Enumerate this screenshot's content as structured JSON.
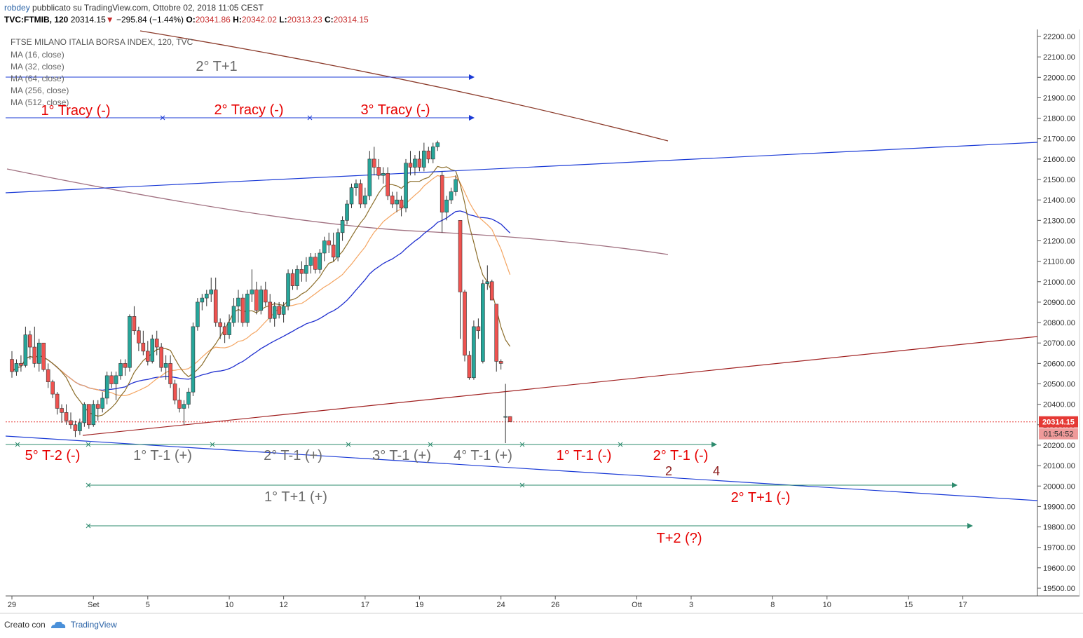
{
  "header": {
    "user": "robdey",
    "published": "pubblicato su TradingView.com, Ottobre 02, 2018 11:05 CEST",
    "symbol": "TVC:FTMIB, 120",
    "last": "20314.15",
    "arrow": "▼",
    "change": "−295.84 (−1.44%)",
    "o_label": "O:",
    "o_val": "20341.86",
    "h_label": "H:",
    "h_val": "20342.02",
    "l_label": "L:",
    "l_val": "20313.23",
    "c_label": "C:",
    "c_val": "20314.15"
  },
  "legend": {
    "title": "FTSE MILANO ITALIA BORSA INDEX, 120, TVC",
    "items": [
      "MA (16, close)",
      "MA (32, close)",
      "MA (64, close)",
      "MA (256, close)",
      "MA (512, close)"
    ]
  },
  "footer": {
    "created": "Creato con",
    "brand": "TradingView",
    "logo_icon": "tradingview-cloud-icon"
  },
  "colors": {
    "up": "#26a69a",
    "down": "#ef5350",
    "ma16": "#8b6d2a",
    "ma32": "#f4a460",
    "ma64": "#1f2fcf",
    "ma256": "#a07080",
    "ma512": "#8b3a2a",
    "annot_red": "#e60000",
    "annot_grey": "#6a6a6a",
    "hline_blue": "#1a3ad6",
    "teal": "#2e8b6e"
  },
  "chart_data": {
    "type": "candlestick",
    "ylim": [
      19450,
      22250
    ],
    "y_ticks": [
      "19500.00",
      "19600.00",
      "19700.00",
      "19800.00",
      "19900.00",
      "20000.00",
      "20100.00",
      "20200.00",
      "20300.00",
      "20400.00",
      "20500.00",
      "20600.00",
      "20700.00",
      "20800.00",
      "20900.00",
      "21000.00",
      "21100.00",
      "21200.00",
      "21300.00",
      "21400.00",
      "21500.00",
      "21600.00",
      "21700.00",
      "21800.00",
      "21900.00",
      "22000.00",
      "22100.00",
      "22200.00"
    ],
    "x_ticks": [
      {
        "label": "29",
        "bar": 0
      },
      {
        "label": "Set",
        "bar": 18
      },
      {
        "label": "5",
        "bar": 30
      },
      {
        "label": "10",
        "bar": 48
      },
      {
        "label": "12",
        "bar": 60
      },
      {
        "label": "17",
        "bar": 78
      },
      {
        "label": "19",
        "bar": 90
      },
      {
        "label": "24",
        "bar": 108
      },
      {
        "label": "26",
        "bar": 120
      },
      {
        "label": "Ott",
        "bar": 138
      },
      {
        "label": "3",
        "bar": 150
      },
      {
        "label": "8",
        "bar": 168
      },
      {
        "label": "10",
        "bar": 180
      },
      {
        "label": "15",
        "bar": 198
      },
      {
        "label": "17",
        "bar": 210
      }
    ],
    "last_price": "20314.15",
    "countdown": "01:54:52",
    "candles": [
      [
        20620,
        20660,
        20530,
        20560
      ],
      [
        20560,
        20620,
        20540,
        20600
      ],
      [
        20600,
        20640,
        20560,
        20590
      ],
      [
        20590,
        20780,
        20580,
        20740
      ],
      [
        20740,
        20760,
        20620,
        20680
      ],
      [
        20680,
        20780,
        20580,
        20600
      ],
      [
        20600,
        20720,
        20560,
        20700
      ],
      [
        20700,
        20700,
        20560,
        20570
      ],
      [
        20570,
        20600,
        20480,
        20510
      ],
      [
        20510,
        20520,
        20430,
        20450
      ],
      [
        20450,
        20460,
        20350,
        20380
      ],
      [
        20380,
        20400,
        20310,
        20360
      ],
      [
        20360,
        20400,
        20300,
        20320
      ],
      [
        20320,
        20360,
        20280,
        20300
      ],
      [
        20300,
        20320,
        20240,
        20270
      ],
      [
        20270,
        20330,
        20250,
        20310
      ],
      [
        20310,
        20410,
        20290,
        20400
      ],
      [
        20400,
        20400,
        20280,
        20300
      ],
      [
        20300,
        20420,
        20290,
        20400
      ],
      [
        20400,
        20420,
        20320,
        20380
      ],
      [
        20380,
        20460,
        20360,
        20430
      ],
      [
        20430,
        20560,
        20400,
        20540
      ],
      [
        20540,
        20560,
        20480,
        20500
      ],
      [
        20500,
        20560,
        20420,
        20540
      ],
      [
        20540,
        20620,
        20520,
        20600
      ],
      [
        20600,
        20620,
        20540,
        20580
      ],
      [
        20580,
        20840,
        20560,
        20830
      ],
      [
        20830,
        20880,
        20740,
        20760
      ],
      [
        20760,
        20780,
        20660,
        20700
      ],
      [
        20700,
        20760,
        20640,
        20660
      ],
      [
        20660,
        20710,
        20590,
        20610
      ],
      [
        20610,
        20740,
        20600,
        20720
      ],
      [
        20720,
        20760,
        20640,
        20680
      ],
      [
        20680,
        20700,
        20560,
        20580
      ],
      [
        20580,
        20640,
        20520,
        20600
      ],
      [
        20600,
        20640,
        20480,
        20500
      ],
      [
        20500,
        20520,
        20400,
        20420
      ],
      [
        20420,
        20480,
        20360,
        20380
      ],
      [
        20380,
        20420,
        20300,
        20400
      ],
      [
        20400,
        20480,
        20380,
        20460
      ],
      [
        20460,
        20800,
        20440,
        20780
      ],
      [
        20780,
        20920,
        20760,
        20900
      ],
      [
        20900,
        20940,
        20860,
        20920
      ],
      [
        20920,
        20960,
        20880,
        20940
      ],
      [
        20940,
        21020,
        20900,
        20960
      ],
      [
        20960,
        21020,
        20780,
        20800
      ],
      [
        20800,
        20820,
        20720,
        20780
      ],
      [
        20780,
        20800,
        20700,
        20740
      ],
      [
        20740,
        20840,
        20720,
        20800
      ],
      [
        20800,
        20920,
        20780,
        20880
      ],
      [
        20880,
        20960,
        20800,
        20920
      ],
      [
        20920,
        20940,
        20780,
        20800
      ],
      [
        20800,
        20960,
        20780,
        20940
      ],
      [
        20940,
        21060,
        20900,
        20960
      ],
      [
        20960,
        21000,
        20840,
        20860
      ],
      [
        20860,
        20980,
        20840,
        20960
      ],
      [
        20960,
        21000,
        20880,
        20900
      ],
      [
        20900,
        20940,
        20800,
        20820
      ],
      [
        20820,
        20900,
        20780,
        20880
      ],
      [
        20880,
        20900,
        20820,
        20840
      ],
      [
        20840,
        20900,
        20800,
        20880
      ],
      [
        20880,
        21060,
        20860,
        21040
      ],
      [
        21040,
        21060,
        20960,
        20980
      ],
      [
        20980,
        21080,
        20960,
        21060
      ],
      [
        21060,
        21100,
        21000,
        21040
      ],
      [
        21040,
        21120,
        21000,
        21080
      ],
      [
        21080,
        21140,
        21040,
        21120
      ],
      [
        21120,
        21140,
        21040,
        21060
      ],
      [
        21060,
        21160,
        21040,
        21140
      ],
      [
        21140,
        21220,
        21100,
        21200
      ],
      [
        21200,
        21240,
        21140,
        21180
      ],
      [
        21180,
        21240,
        21100,
        21120
      ],
      [
        21120,
        21260,
        21100,
        21240
      ],
      [
        21240,
        21320,
        21200,
        21300
      ],
      [
        21300,
        21400,
        21280,
        21380
      ],
      [
        21380,
        21480,
        21360,
        21460
      ],
      [
        21460,
        21500,
        21420,
        21480
      ],
      [
        21480,
        21500,
        21360,
        21380
      ],
      [
        21380,
        21460,
        21360,
        21420
      ],
      [
        21420,
        21640,
        21400,
        21600
      ],
      [
        21600,
        21660,
        21520,
        21560
      ],
      [
        21560,
        21600,
        21500,
        21520
      ],
      [
        21520,
        21560,
        21480,
        21530
      ],
      [
        21530,
        21560,
        21400,
        21420
      ],
      [
        21420,
        21440,
        21360,
        21380
      ],
      [
        21380,
        21440,
        21340,
        21400
      ],
      [
        21400,
        21420,
        21320,
        21360
      ],
      [
        21360,
        21600,
        21340,
        21580
      ],
      [
        21580,
        21640,
        21520,
        21560
      ],
      [
        21560,
        21620,
        21520,
        21600
      ],
      [
        21600,
        21640,
        21540,
        21560
      ],
      [
        21560,
        21680,
        21540,
        21640
      ],
      [
        21640,
        21660,
        21580,
        21600
      ],
      [
        21600,
        21680,
        21580,
        21660
      ],
      [
        21660,
        21690,
        21640,
        21680
      ],
      [
        21520,
        21540,
        21240,
        21340
      ],
      [
        21340,
        21420,
        21300,
        21400
      ],
      [
        21400,
        21460,
        21380,
        21440
      ],
      [
        21440,
        21520,
        21420,
        21500
      ],
      [
        21300,
        21300,
        20720,
        20950
      ],
      [
        20950,
        20960,
        20610,
        20640
      ],
      [
        20640,
        20660,
        20520,
        20530
      ],
      [
        20530,
        20810,
        20520,
        20780
      ],
      [
        20780,
        20820,
        20720,
        20760
      ],
      [
        20610,
        21010,
        20600,
        20990
      ],
      [
        20990,
        21080,
        20960,
        21000
      ],
      [
        21000,
        21010,
        20920,
        20910
      ],
      [
        20890,
        20890,
        20560,
        20610
      ],
      [
        20610,
        20620,
        20570,
        20600
      ],
      [
        20340,
        20500,
        20210,
        20340
      ],
      [
        20340,
        20342,
        20313,
        20314
      ]
    ]
  },
  "annotations": {
    "t1": "2° T+1",
    "tracy1": "1° Tracy (-)",
    "tracy2": "2° Tracy (-)",
    "tracy3": "3° Tracy (-)",
    "tm2": "5° T-2 (-)",
    "tm1a": "1° T-1 (+)",
    "tm1b": "2° T-1 (+)",
    "tm1c": "3° T-1 (+)",
    "tm1d": "4° T-1 (+)",
    "tm1e": "1° T-1 (-)",
    "tm1f": "2° T-1 (-)",
    "n2": "2",
    "n4": "4",
    "tp1a": "1° T+1 (+)",
    "tp1b": "2° T+1 (-)",
    "tp2": "T+2 (?)"
  }
}
